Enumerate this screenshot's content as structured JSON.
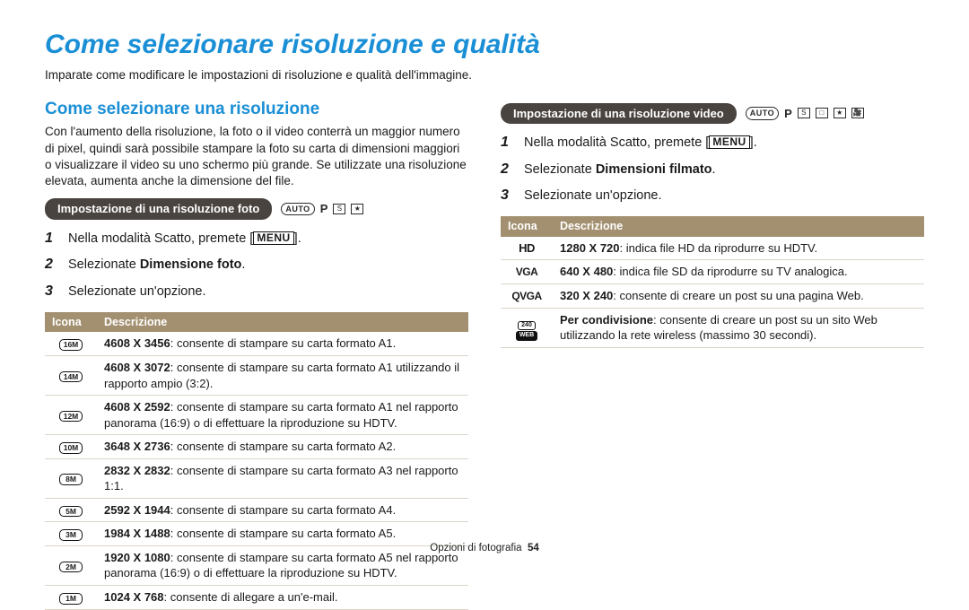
{
  "title": "Come selezionare risoluzione e qualità",
  "intro": "Imparate come modificare le impostazioni di risoluzione e qualità dell'immagine.",
  "footer_label": "Opzioni di fotografia",
  "page_number": "54",
  "colors": {
    "accent": "#1a8fd6",
    "pill_bg": "#4a4440",
    "table_header_bg": "#a39070",
    "row_border": "#dcd6c8"
  },
  "photo": {
    "section_title": "Come selezionare una risoluzione",
    "body": "Con l'aumento della risoluzione, la foto o il video conterrà un maggior numero di pixel, quindi sarà possibile stampare la foto su carta di dimensioni maggiori o visualizzare il video su uno schermo più grande. Se utilizzate una risoluzione elevata, aumenta anche la dimensione del file.",
    "pill": "Impostazione di una risoluzione foto",
    "modes": [
      "AUTO",
      "P",
      "S",
      "★"
    ],
    "step1_a": "Nella modalità Scatto, premete [",
    "menu_label": "MENU",
    "step1_b": "].",
    "step2_a": "Selezionate ",
    "step2_b": "Dimensione foto",
    "step2_c": ".",
    "step3": "Selezionate un'opzione.",
    "th_icon": "Icona",
    "th_desc": "Descrizione",
    "rows": [
      {
        "icon": "16M",
        "res": "4608 X 3456",
        "desc": ": consente di stampare su carta formato A1."
      },
      {
        "icon": "14M",
        "res": "4608 X 3072",
        "desc": ": consente di stampare su carta formato A1 utilizzando il rapporto ampio (3:2)."
      },
      {
        "icon": "12M",
        "res": "4608 X 2592",
        "desc": ": consente di stampare su carta formato A1 nel rapporto panorama (16:9) o di effettuare la riproduzione su HDTV."
      },
      {
        "icon": "10M",
        "res": "3648 X 2736",
        "desc": ": consente di stampare su carta formato A2."
      },
      {
        "icon": "8M",
        "res": "2832 X 2832",
        "desc": ": consente di stampare su carta formato A3 nel rapporto 1:1."
      },
      {
        "icon": "5M",
        "res": "2592 X 1944",
        "desc": ": consente di stampare su carta formato A4."
      },
      {
        "icon": "3M",
        "res": "1984 X 1488",
        "desc": ": consente di stampare su carta formato A5."
      },
      {
        "icon": "2M",
        "res": "1920 X 1080",
        "desc": ": consente di stampare su carta formato A5 nel rapporto panorama (16:9) o di effettuare la riproduzione su HDTV."
      },
      {
        "icon": "1M",
        "res": "1024 X 768",
        "desc": ": consente di allegare a un'e-mail."
      }
    ]
  },
  "video": {
    "pill": "Impostazione di una risoluzione video",
    "modes": [
      "AUTO",
      "P",
      "S",
      "□",
      "★",
      "🎥"
    ],
    "step1_a": "Nella modalità Scatto, premete [",
    "menu_label": "MENU",
    "step1_b": "].",
    "step2_a": "Selezionate ",
    "step2_b": "Dimensioni filmato",
    "step2_c": ".",
    "step3": "Selezionate un'opzione.",
    "th_icon": "Icona",
    "th_desc": "Descrizione",
    "rows": [
      {
        "icon_type": "hd",
        "icon": "HD",
        "res": "1280 X 720",
        "desc": ": indica file HD da riprodurre su HDTV."
      },
      {
        "icon_type": "vga",
        "icon": "VGA",
        "res": "640 X 480",
        "desc": ": indica file SD da riprodurre su TV analogica."
      },
      {
        "icon_type": "vga",
        "icon": "QVGA",
        "res": "320 X 240",
        "desc": ": consente di creare un post su una pagina Web."
      },
      {
        "icon_type": "dual",
        "icon_top": "240",
        "icon_bot": "WEB",
        "res": "Per condivisione",
        "desc": ": consente di creare un post su un sito Web utilizzando la rete wireless (massimo 30 secondi)."
      }
    ]
  }
}
